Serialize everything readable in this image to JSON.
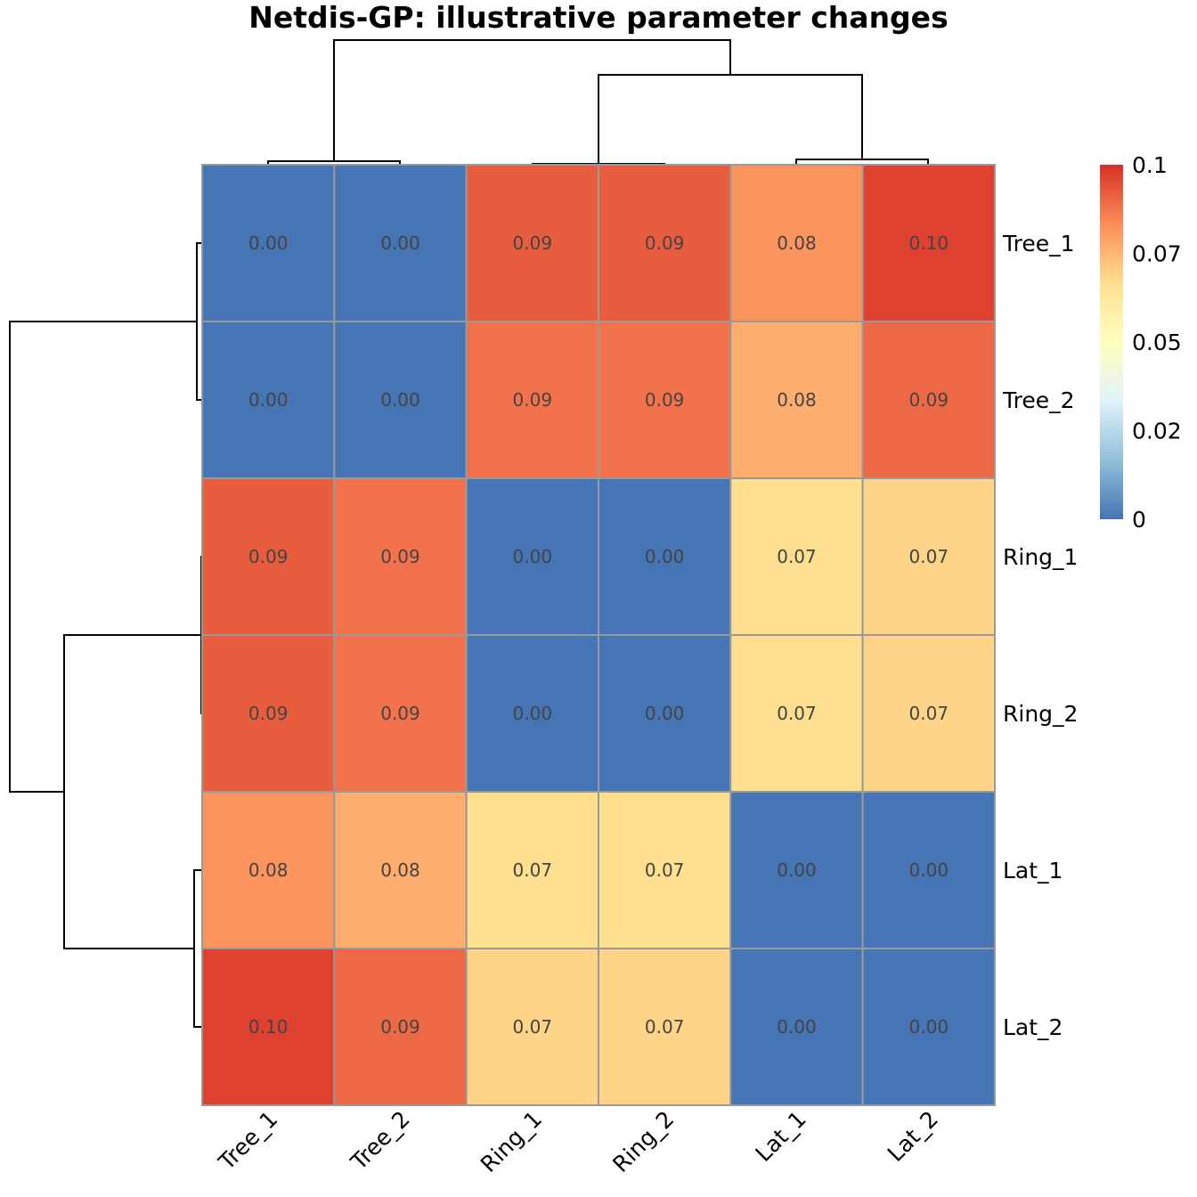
{
  "chart_data": {
    "type": "heatmap",
    "title": "Netdis-GP: illustrative parameter changes",
    "rows": [
      "Tree_1",
      "Tree_2",
      "Ring_1",
      "Ring_2",
      "Lat_1",
      "Lat_2"
    ],
    "columns": [
      "Tree_1",
      "Tree_2",
      "Ring_1",
      "Ring_2",
      "Lat_1",
      "Lat_2"
    ],
    "values": [
      [
        0.0,
        0.0,
        0.092,
        0.092,
        0.082,
        0.097
      ],
      [
        0.0,
        0.0,
        0.088,
        0.088,
        0.077,
        0.09
      ],
      [
        0.092,
        0.088,
        0.0,
        0.0,
        0.067,
        0.069
      ],
      [
        0.092,
        0.088,
        0.0,
        0.0,
        0.067,
        0.069
      ],
      [
        0.082,
        0.077,
        0.067,
        0.067,
        0.0,
        0.0
      ],
      [
        0.097,
        0.09,
        0.069,
        0.069,
        0.0,
        0.0
      ]
    ],
    "cell_labels": [
      [
        "0.00",
        "0.00",
        "0.09",
        "0.09",
        "0.08",
        "0.10"
      ],
      [
        "0.00",
        "0.00",
        "0.09",
        "0.09",
        "0.08",
        "0.09"
      ],
      [
        "0.09",
        "0.09",
        "0.00",
        "0.00",
        "0.07",
        "0.07"
      ],
      [
        "0.09",
        "0.09",
        "0.00",
        "0.00",
        "0.07",
        "0.07"
      ],
      [
        "0.08",
        "0.08",
        "0.07",
        "0.07",
        "0.00",
        "0.00"
      ],
      [
        "0.10",
        "0.09",
        "0.07",
        "0.07",
        "0.00",
        "0.00"
      ]
    ],
    "color_range": [
      0,
      0.1
    ],
    "color_scale": [
      "#4575B4",
      "#91BFDB",
      "#E0F3F8",
      "#FFFFBF",
      "#FEE090",
      "#FC8D59",
      "#D73027"
    ],
    "legend_ticks": [
      {
        "value": 0.1,
        "label": "0.1"
      },
      {
        "value": 0.075,
        "label": "0.07"
      },
      {
        "value": 0.05,
        "label": "0.05"
      },
      {
        "value": 0.025,
        "label": "0.02"
      },
      {
        "value": 0,
        "label": "0"
      }
    ],
    "legend_placement": "right",
    "dendrograms": [
      "top",
      "left"
    ],
    "cell_border_color": "#999999",
    "grid": false
  }
}
